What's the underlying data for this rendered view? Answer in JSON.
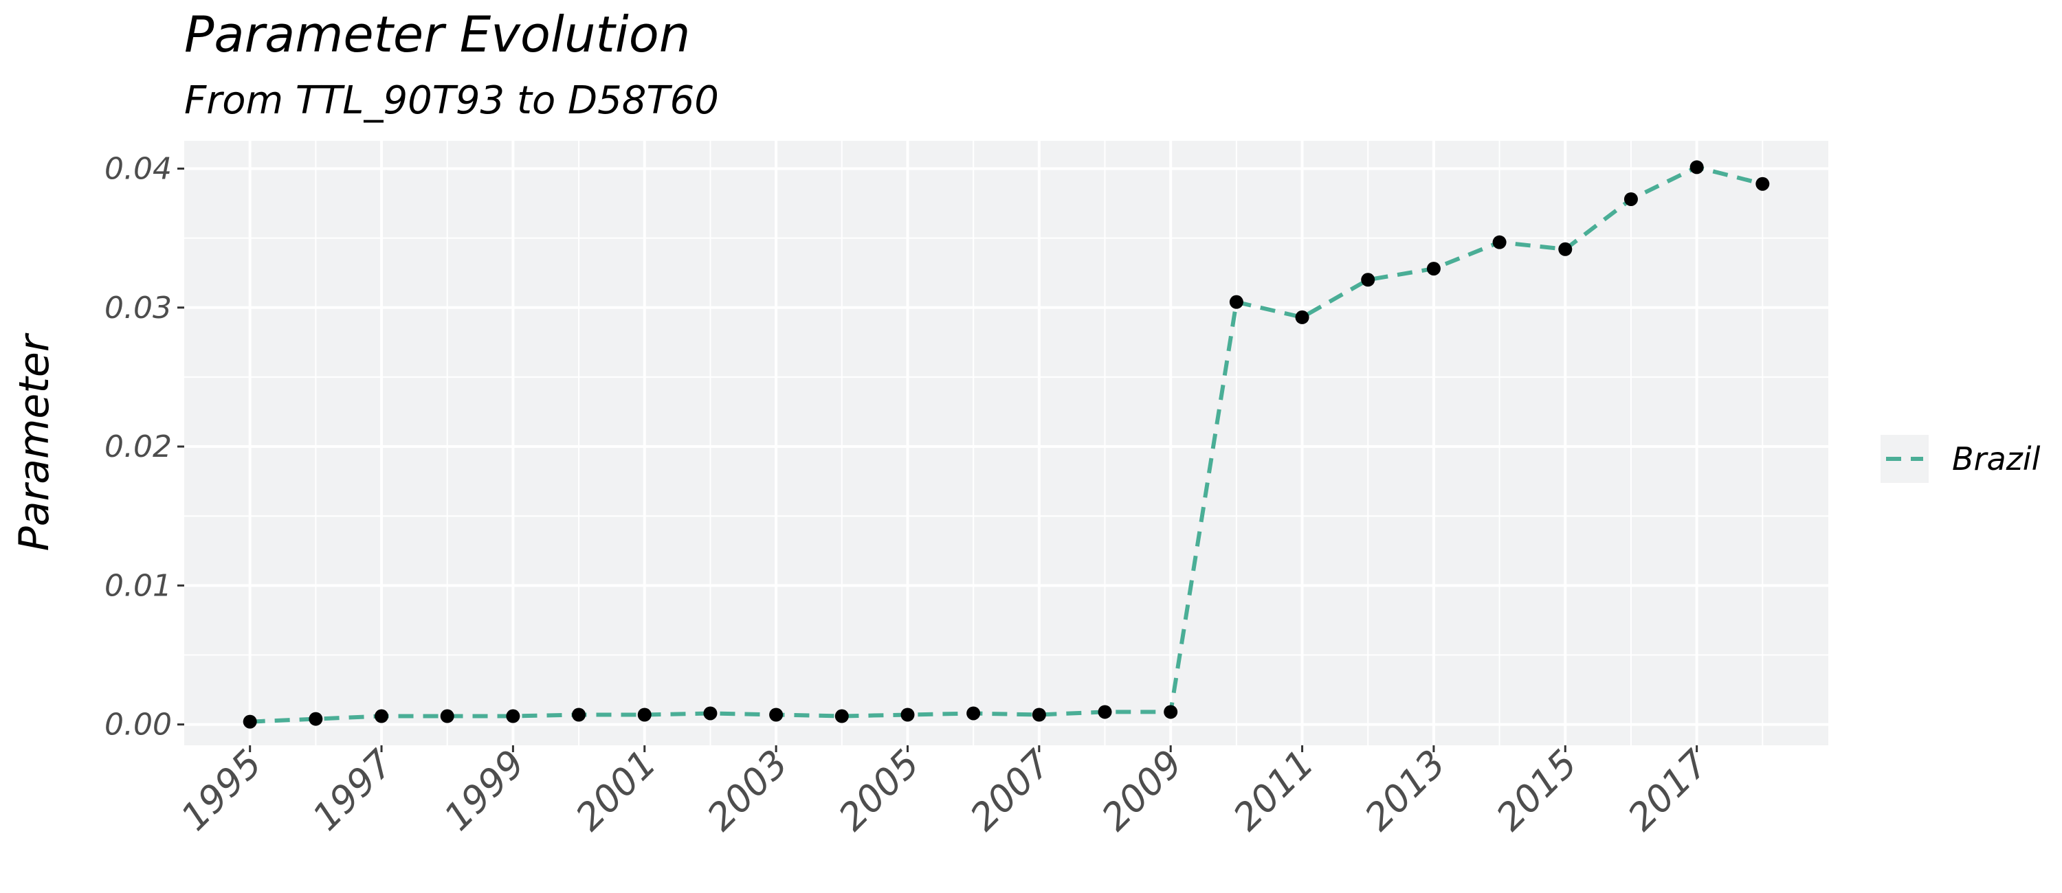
{
  "chart_data": {
    "type": "line",
    "title": "Parameter Evolution",
    "subtitle": "From TTL_90T93 to D58T60",
    "xlabel": "",
    "ylabel": "Parameter",
    "x": [
      1995,
      1996,
      1997,
      1998,
      1999,
      2000,
      2001,
      2002,
      2003,
      2004,
      2005,
      2006,
      2007,
      2008,
      2009,
      2010,
      2011,
      2012,
      2013,
      2014,
      2015,
      2016,
      2017,
      2018
    ],
    "series": [
      {
        "name": "Brazil",
        "color": "#4aae96",
        "line_style": "dashed",
        "marker_color": "#000000",
        "values": [
          0.0002,
          0.0004,
          0.0006,
          0.0006,
          0.0006,
          0.0007,
          0.0007,
          0.0008,
          0.0007,
          0.0006,
          0.0007,
          0.0008,
          0.0007,
          0.0009,
          0.0009,
          0.0304,
          0.0293,
          0.032,
          0.0328,
          0.0347,
          0.0342,
          0.0378,
          0.0401,
          0.0389
        ]
      }
    ],
    "xlim": [
      1994,
      2019
    ],
    "ylim": [
      -0.0015,
      0.042
    ],
    "x_ticks": [
      1995,
      1997,
      1999,
      2001,
      2003,
      2005,
      2007,
      2009,
      2011,
      2013,
      2015,
      2017
    ],
    "x_tick_labels": [
      "1995",
      "1997",
      "1999",
      "2001",
      "2003",
      "2005",
      "2007",
      "2009",
      "2011",
      "2013",
      "2015",
      "2017"
    ],
    "y_ticks": [
      0,
      0.01,
      0.02,
      0.03,
      0.04
    ],
    "y_tick_labels": [
      "0.00",
      "0.01",
      "0.02",
      "0.03",
      "0.04"
    ],
    "grid": true,
    "legend_position": "right",
    "panel_background": "#f1f2f3",
    "grid_color": "#ffffff"
  }
}
